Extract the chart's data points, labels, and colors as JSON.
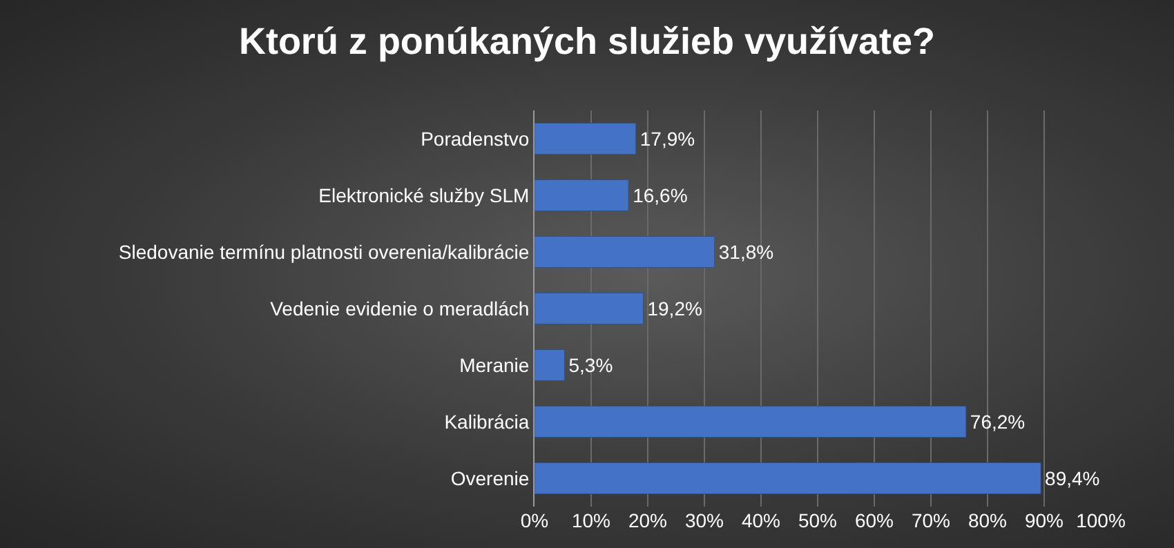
{
  "chart_data": {
    "type": "bar",
    "orientation": "horizontal",
    "title": "Ktorú z ponúkaných služieb využívate?",
    "categories": [
      "Poradenstvo",
      "Elektronické služby SLM",
      "Sledovanie termínu platnosti overenia/kalibrácie",
      "Vedenie evidenie o meradlách",
      "Meranie",
      "Kalibrácia",
      "Overenie"
    ],
    "values": [
      17.9,
      16.6,
      31.8,
      19.2,
      5.3,
      76.2,
      89.4
    ],
    "value_labels": [
      "17,9%",
      "16,6%",
      "31,8%",
      "19,2%",
      "5,3%",
      "76,2%",
      "89,4%"
    ],
    "color": "#4472c4",
    "xlim": [
      0,
      100
    ],
    "xticks": [
      {
        "value": 0,
        "label": "0%"
      },
      {
        "value": 10,
        "label": "10%"
      },
      {
        "value": 20,
        "label": "20%"
      },
      {
        "value": 30,
        "label": "30%"
      },
      {
        "value": 40,
        "label": "40%"
      },
      {
        "value": 50,
        "label": "50%"
      },
      {
        "value": 60,
        "label": "60%"
      },
      {
        "value": 70,
        "label": "70%"
      },
      {
        "value": 80,
        "label": "80%"
      },
      {
        "value": 90,
        "label": "90%"
      },
      {
        "value": 100,
        "label": "100%"
      }
    ],
    "grid": "x",
    "legend": false
  }
}
